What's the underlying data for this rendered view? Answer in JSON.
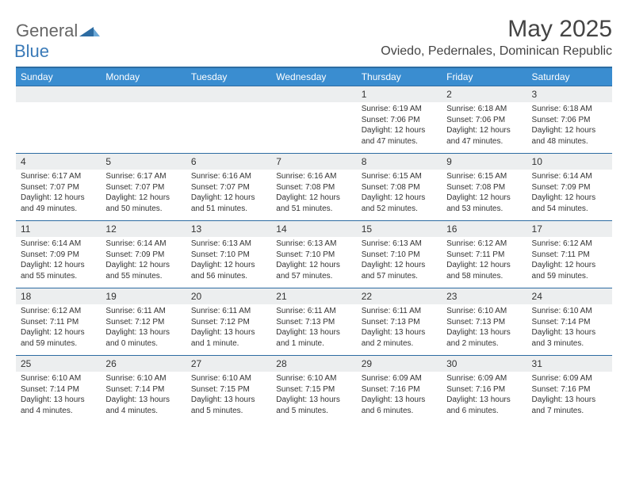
{
  "logo": {
    "text1": "General",
    "text2": "Blue"
  },
  "title": "May 2025",
  "location": "Oviedo, Pedernales, Dominican Republic",
  "colors": {
    "headerBar": "#3a8dd0",
    "ruleLine": "#2d6ca2",
    "dayNumBg": "#eceeef",
    "logoBlue": "#3a7ab8"
  },
  "dayHeaders": [
    "Sunday",
    "Monday",
    "Tuesday",
    "Wednesday",
    "Thursday",
    "Friday",
    "Saturday"
  ],
  "weeks": [
    [
      {
        "num": "",
        "lines": []
      },
      {
        "num": "",
        "lines": []
      },
      {
        "num": "",
        "lines": []
      },
      {
        "num": "",
        "lines": []
      },
      {
        "num": "1",
        "lines": [
          "Sunrise: 6:19 AM",
          "Sunset: 7:06 PM",
          "Daylight: 12 hours",
          "and 47 minutes."
        ]
      },
      {
        "num": "2",
        "lines": [
          "Sunrise: 6:18 AM",
          "Sunset: 7:06 PM",
          "Daylight: 12 hours",
          "and 47 minutes."
        ]
      },
      {
        "num": "3",
        "lines": [
          "Sunrise: 6:18 AM",
          "Sunset: 7:06 PM",
          "Daylight: 12 hours",
          "and 48 minutes."
        ]
      }
    ],
    [
      {
        "num": "4",
        "lines": [
          "Sunrise: 6:17 AM",
          "Sunset: 7:07 PM",
          "Daylight: 12 hours",
          "and 49 minutes."
        ]
      },
      {
        "num": "5",
        "lines": [
          "Sunrise: 6:17 AM",
          "Sunset: 7:07 PM",
          "Daylight: 12 hours",
          "and 50 minutes."
        ]
      },
      {
        "num": "6",
        "lines": [
          "Sunrise: 6:16 AM",
          "Sunset: 7:07 PM",
          "Daylight: 12 hours",
          "and 51 minutes."
        ]
      },
      {
        "num": "7",
        "lines": [
          "Sunrise: 6:16 AM",
          "Sunset: 7:08 PM",
          "Daylight: 12 hours",
          "and 51 minutes."
        ]
      },
      {
        "num": "8",
        "lines": [
          "Sunrise: 6:15 AM",
          "Sunset: 7:08 PM",
          "Daylight: 12 hours",
          "and 52 minutes."
        ]
      },
      {
        "num": "9",
        "lines": [
          "Sunrise: 6:15 AM",
          "Sunset: 7:08 PM",
          "Daylight: 12 hours",
          "and 53 minutes."
        ]
      },
      {
        "num": "10",
        "lines": [
          "Sunrise: 6:14 AM",
          "Sunset: 7:09 PM",
          "Daylight: 12 hours",
          "and 54 minutes."
        ]
      }
    ],
    [
      {
        "num": "11",
        "lines": [
          "Sunrise: 6:14 AM",
          "Sunset: 7:09 PM",
          "Daylight: 12 hours",
          "and 55 minutes."
        ]
      },
      {
        "num": "12",
        "lines": [
          "Sunrise: 6:14 AM",
          "Sunset: 7:09 PM",
          "Daylight: 12 hours",
          "and 55 minutes."
        ]
      },
      {
        "num": "13",
        "lines": [
          "Sunrise: 6:13 AM",
          "Sunset: 7:10 PM",
          "Daylight: 12 hours",
          "and 56 minutes."
        ]
      },
      {
        "num": "14",
        "lines": [
          "Sunrise: 6:13 AM",
          "Sunset: 7:10 PM",
          "Daylight: 12 hours",
          "and 57 minutes."
        ]
      },
      {
        "num": "15",
        "lines": [
          "Sunrise: 6:13 AM",
          "Sunset: 7:10 PM",
          "Daylight: 12 hours",
          "and 57 minutes."
        ]
      },
      {
        "num": "16",
        "lines": [
          "Sunrise: 6:12 AM",
          "Sunset: 7:11 PM",
          "Daylight: 12 hours",
          "and 58 minutes."
        ]
      },
      {
        "num": "17",
        "lines": [
          "Sunrise: 6:12 AM",
          "Sunset: 7:11 PM",
          "Daylight: 12 hours",
          "and 59 minutes."
        ]
      }
    ],
    [
      {
        "num": "18",
        "lines": [
          "Sunrise: 6:12 AM",
          "Sunset: 7:11 PM",
          "Daylight: 12 hours",
          "and 59 minutes."
        ]
      },
      {
        "num": "19",
        "lines": [
          "Sunrise: 6:11 AM",
          "Sunset: 7:12 PM",
          "Daylight: 13 hours",
          "and 0 minutes."
        ]
      },
      {
        "num": "20",
        "lines": [
          "Sunrise: 6:11 AM",
          "Sunset: 7:12 PM",
          "Daylight: 13 hours",
          "and 1 minute."
        ]
      },
      {
        "num": "21",
        "lines": [
          "Sunrise: 6:11 AM",
          "Sunset: 7:13 PM",
          "Daylight: 13 hours",
          "and 1 minute."
        ]
      },
      {
        "num": "22",
        "lines": [
          "Sunrise: 6:11 AM",
          "Sunset: 7:13 PM",
          "Daylight: 13 hours",
          "and 2 minutes."
        ]
      },
      {
        "num": "23",
        "lines": [
          "Sunrise: 6:10 AM",
          "Sunset: 7:13 PM",
          "Daylight: 13 hours",
          "and 2 minutes."
        ]
      },
      {
        "num": "24",
        "lines": [
          "Sunrise: 6:10 AM",
          "Sunset: 7:14 PM",
          "Daylight: 13 hours",
          "and 3 minutes."
        ]
      }
    ],
    [
      {
        "num": "25",
        "lines": [
          "Sunrise: 6:10 AM",
          "Sunset: 7:14 PM",
          "Daylight: 13 hours",
          "and 4 minutes."
        ]
      },
      {
        "num": "26",
        "lines": [
          "Sunrise: 6:10 AM",
          "Sunset: 7:14 PM",
          "Daylight: 13 hours",
          "and 4 minutes."
        ]
      },
      {
        "num": "27",
        "lines": [
          "Sunrise: 6:10 AM",
          "Sunset: 7:15 PM",
          "Daylight: 13 hours",
          "and 5 minutes."
        ]
      },
      {
        "num": "28",
        "lines": [
          "Sunrise: 6:10 AM",
          "Sunset: 7:15 PM",
          "Daylight: 13 hours",
          "and 5 minutes."
        ]
      },
      {
        "num": "29",
        "lines": [
          "Sunrise: 6:09 AM",
          "Sunset: 7:16 PM",
          "Daylight: 13 hours",
          "and 6 minutes."
        ]
      },
      {
        "num": "30",
        "lines": [
          "Sunrise: 6:09 AM",
          "Sunset: 7:16 PM",
          "Daylight: 13 hours",
          "and 6 minutes."
        ]
      },
      {
        "num": "31",
        "lines": [
          "Sunrise: 6:09 AM",
          "Sunset: 7:16 PM",
          "Daylight: 13 hours",
          "and 7 minutes."
        ]
      }
    ]
  ]
}
